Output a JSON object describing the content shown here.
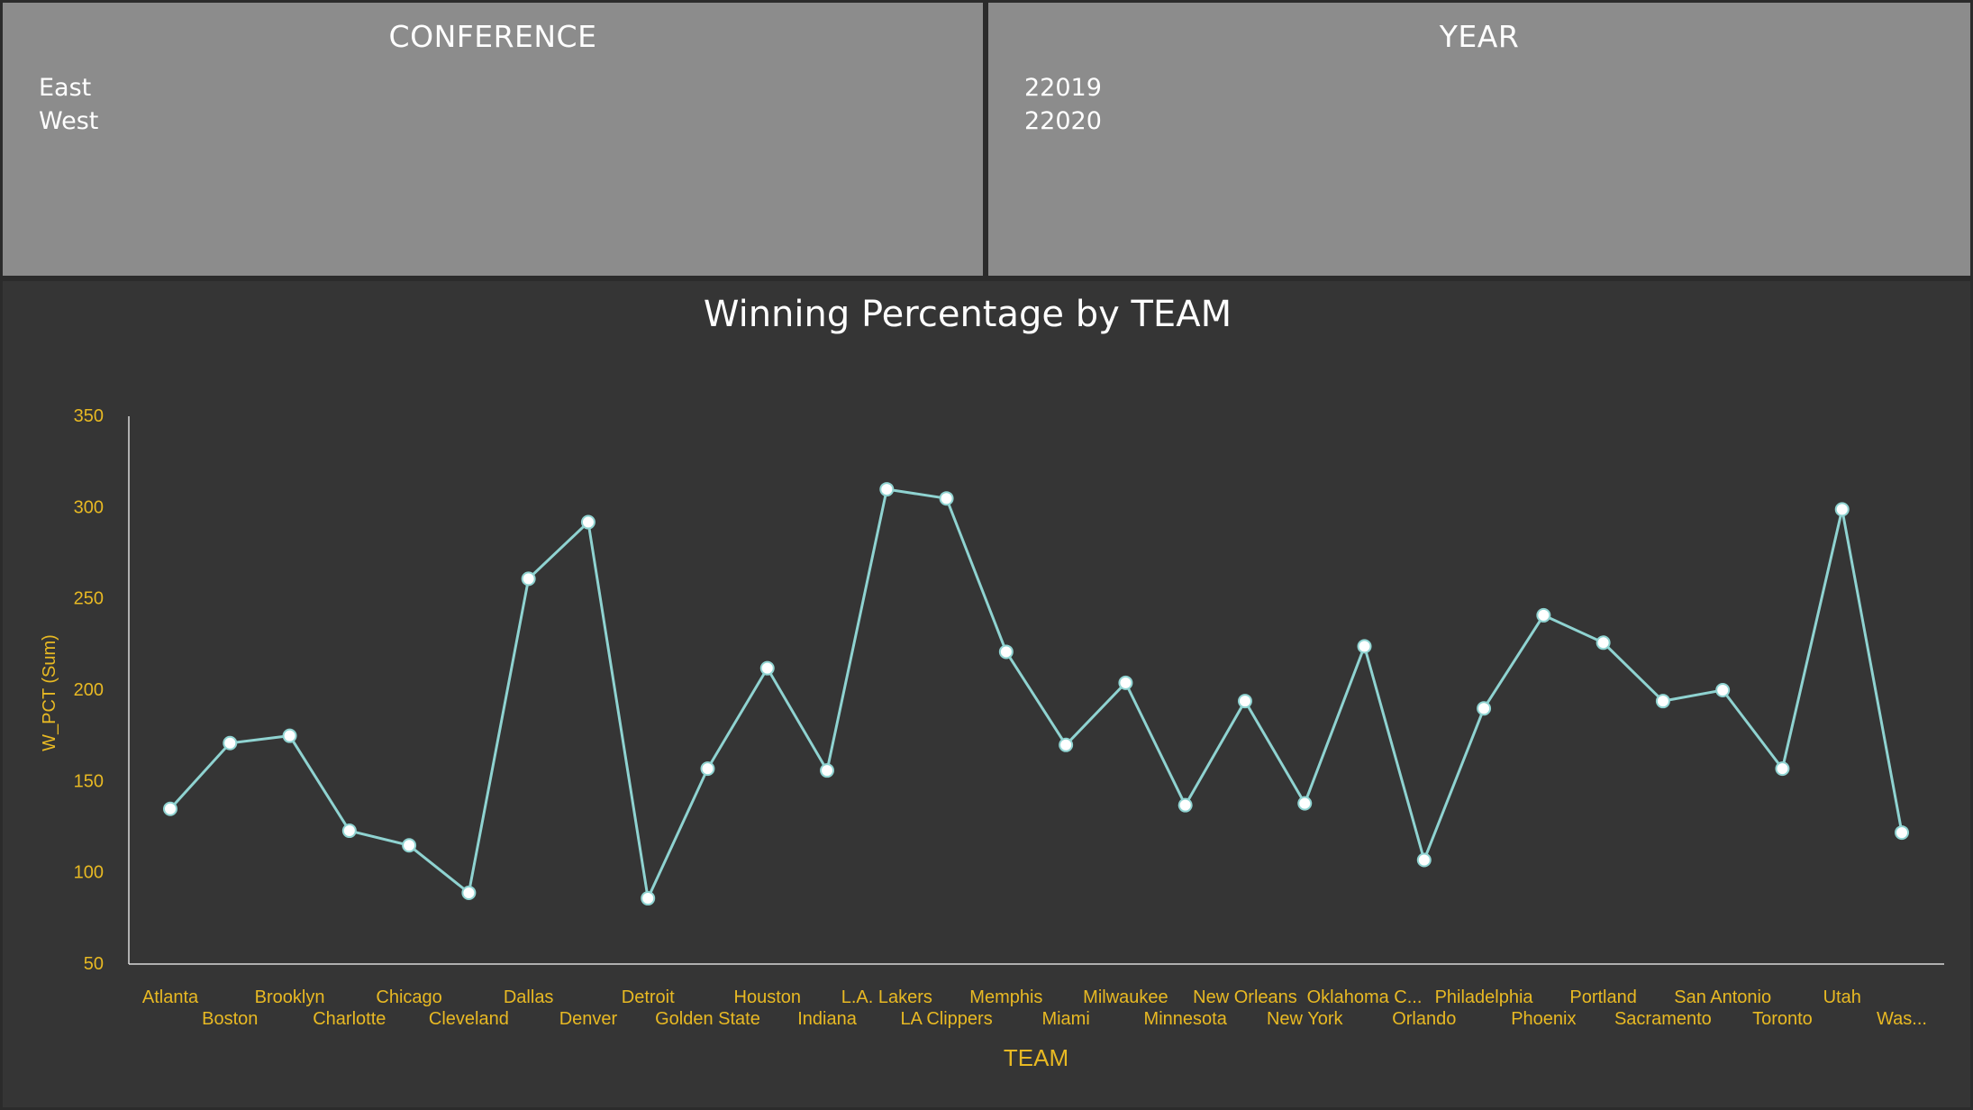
{
  "slicers": {
    "conference": {
      "title": "CONFERENCE",
      "items": [
        "East",
        "West"
      ]
    },
    "year": {
      "title": "YEAR",
      "items": [
        "22019",
        "22020"
      ]
    }
  },
  "colors": {
    "line": "#8fd3d1",
    "axis_text": "#e8b923",
    "title": "#ffffff",
    "panel_bg": "#353535",
    "slicer_bg": "#8c8c8c"
  },
  "chart_data": {
    "type": "line",
    "title": "Winning Percentage by TEAM",
    "xlabel": "TEAM",
    "ylabel": "W_PCT (Sum)",
    "ylim": [
      50,
      350
    ],
    "yticks": [
      50,
      100,
      150,
      200,
      250,
      300,
      350
    ],
    "categories": [
      "Atlanta",
      "Boston",
      "Brooklyn",
      "Charlotte",
      "Chicago",
      "Cleveland",
      "Dallas",
      "Denver",
      "Detroit",
      "Golden State",
      "Houston",
      "Indiana",
      "L.A. Lakers",
      "LA Clippers",
      "Memphis",
      "Miami",
      "Milwaukee",
      "Minnesota",
      "New Orleans",
      "New York",
      "Oklahoma C...",
      "Orlando",
      "Philadelphia",
      "Phoenix",
      "Portland",
      "Sacramento",
      "San Antonio",
      "Toronto",
      "Utah",
      "Was..."
    ],
    "values": [
      135,
      171,
      175,
      123,
      115,
      89,
      261,
      292,
      86,
      157,
      212,
      156,
      310,
      305,
      221,
      170,
      204,
      137,
      194,
      138,
      224,
      107,
      190,
      241,
      226,
      194,
      200,
      157,
      299,
      122
    ],
    "grid": false,
    "legend": "none"
  }
}
